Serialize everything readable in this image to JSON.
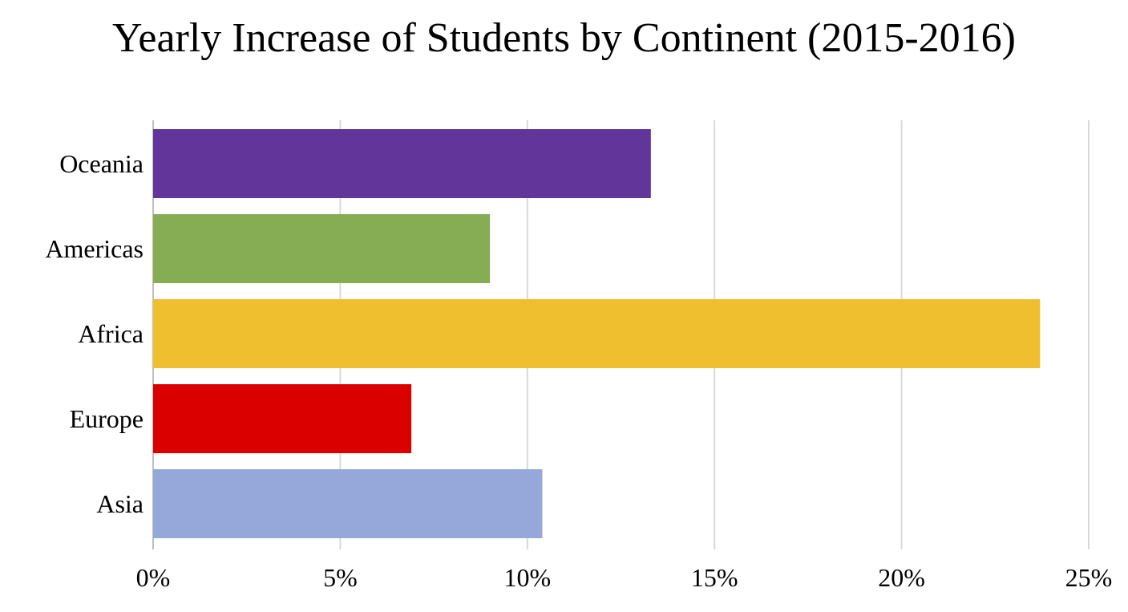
{
  "chart_data": {
    "type": "bar",
    "orientation": "horizontal",
    "title": "Yearly Increase of Students by Continent (2015-2016)",
    "xlabel": "",
    "ylabel": "",
    "categories": [
      "Oceania",
      "Americas",
      "Africa",
      "Europe",
      "Asia"
    ],
    "values": [
      13.3,
      9.0,
      23.7,
      6.9,
      10.4
    ],
    "colors": [
      "#62359A",
      "#86AD53",
      "#EFBF2F",
      "#DB0000",
      "#96A8D9"
    ],
    "xlim": [
      0,
      25
    ],
    "xticks": [
      0,
      5,
      10,
      15,
      20,
      25
    ],
    "xtick_labels": [
      "0%",
      "5%",
      "10%",
      "15%",
      "20%",
      "25%"
    ],
    "grid": "vertical",
    "legend": "none"
  }
}
